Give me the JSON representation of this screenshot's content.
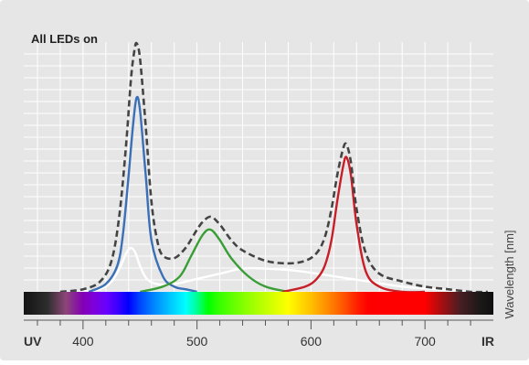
{
  "chart_data": {
    "type": "line",
    "title": "All LEDs on",
    "xlabel": "Wavelength [nm]",
    "ylabel": "",
    "xlim": [
      348,
      760
    ],
    "ylim": [
      0,
      1
    ],
    "grid": true,
    "x_ticks": [
      400,
      500,
      600,
      700
    ],
    "x_edge_labels": {
      "left": "UV",
      "right": "IR"
    },
    "colors": {
      "background": "#e6e6e6",
      "grid": "#ffffff",
      "blue": "#3b6fb6",
      "green": "#3a9d35",
      "red": "#c81e28",
      "white": "#ffffff",
      "total": "#444444"
    },
    "series": [
      {
        "style": "solid",
        "color_key": "blue",
        "x": [
          405,
          420,
          430,
          435,
          440,
          444,
          447,
          450,
          455,
          460,
          470,
          480,
          490,
          500
        ],
        "y": [
          0.0,
          0.03,
          0.1,
          0.22,
          0.45,
          0.65,
          0.75,
          0.7,
          0.45,
          0.2,
          0.06,
          0.02,
          0.01,
          0.0
        ]
      },
      {
        "style": "solid",
        "color_key": "green",
        "x": [
          450,
          470,
          485,
          495,
          505,
          512,
          520,
          530,
          545,
          560,
          580
        ],
        "y": [
          0.0,
          0.02,
          0.06,
          0.14,
          0.22,
          0.24,
          0.2,
          0.13,
          0.06,
          0.02,
          0.0
        ]
      },
      {
        "style": "solid",
        "color_key": "red",
        "x": [
          575,
          595,
          605,
          612,
          618,
          623,
          628,
          631,
          635,
          640,
          648,
          660,
          680,
          700
        ],
        "y": [
          0.0,
          0.02,
          0.05,
          0.1,
          0.2,
          0.35,
          0.48,
          0.52,
          0.45,
          0.26,
          0.08,
          0.02,
          0.0,
          0.0
        ]
      },
      {
        "style": "solid",
        "color_key": "white",
        "x": [
          395,
          415,
          425,
          432,
          438,
          442,
          446,
          450,
          456,
          465,
          480,
          500,
          520,
          540,
          560,
          590,
          620,
          650,
          680,
          710,
          740
        ],
        "y": [
          0.0,
          0.01,
          0.04,
          0.09,
          0.15,
          0.17,
          0.15,
          0.1,
          0.05,
          0.03,
          0.03,
          0.05,
          0.07,
          0.09,
          0.09,
          0.08,
          0.06,
          0.04,
          0.02,
          0.01,
          0.0
        ]
      },
      {
        "style": "dashed",
        "color_key": "total",
        "x": [
          380,
          400,
          415,
          425,
          432,
          438,
          442,
          445,
          447,
          450,
          455,
          460,
          465,
          470,
          480,
          490,
          500,
          505,
          512,
          520,
          530,
          540,
          560,
          580,
          595,
          605,
          612,
          618,
          623,
          628,
          631,
          635,
          640,
          648,
          660,
          680,
          700,
          720,
          740,
          755
        ],
        "y": [
          0.0,
          0.01,
          0.04,
          0.12,
          0.3,
          0.58,
          0.82,
          0.93,
          0.96,
          0.9,
          0.64,
          0.35,
          0.2,
          0.14,
          0.13,
          0.17,
          0.24,
          0.27,
          0.29,
          0.26,
          0.2,
          0.16,
          0.12,
          0.11,
          0.12,
          0.15,
          0.21,
          0.32,
          0.45,
          0.55,
          0.57,
          0.5,
          0.32,
          0.15,
          0.07,
          0.04,
          0.02,
          0.01,
          0.0,
          0.0
        ]
      }
    ]
  }
}
